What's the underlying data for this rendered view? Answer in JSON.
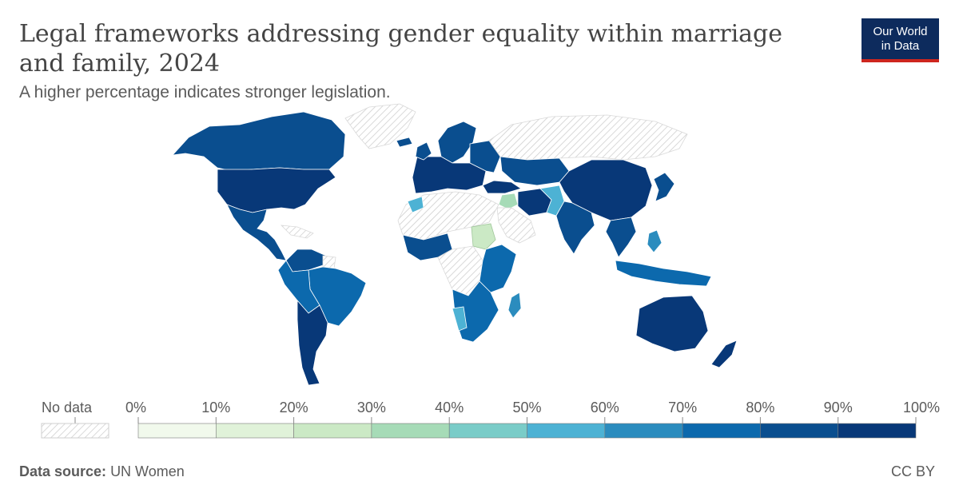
{
  "header": {
    "title": "Legal frameworks addressing gender equality within marriage and family, 2024",
    "subtitle": "A higher percentage indicates stronger legislation."
  },
  "logo": {
    "line1": "Our World",
    "line2": "in Data"
  },
  "legend": {
    "no_data_label": "No data",
    "ticks": [
      "0%",
      "10%",
      "20%",
      "30%",
      "40%",
      "50%",
      "60%",
      "70%",
      "80%",
      "90%",
      "100%"
    ],
    "bins": [
      "#f1f9ec",
      "#e0f2d9",
      "#cbe9c5",
      "#a6dbb7",
      "#7accc8",
      "#4db2d4",
      "#2b8cbe",
      "#0c69ad",
      "#0a4e8f",
      "#083878"
    ],
    "no_data_pattern_color": "#cfcfcf"
  },
  "footer": {
    "source_label": "Data source:",
    "source_value": "UN Women",
    "license": "CC BY"
  },
  "colors": {
    "text": "#5b5b5b",
    "title": "#444444",
    "logo_bg": "#0d2b5d",
    "logo_accent": "#ce261e"
  }
}
